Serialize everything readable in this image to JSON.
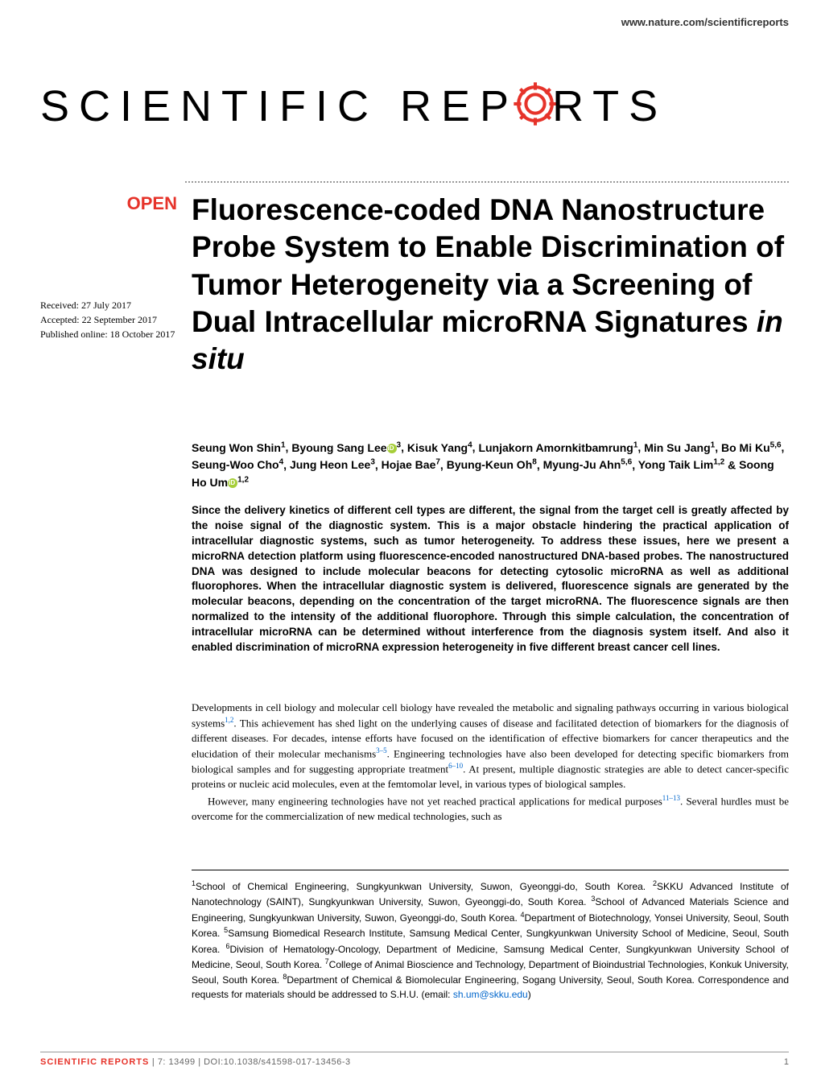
{
  "header": {
    "url": "www.nature.com/scientificreports"
  },
  "journal": {
    "logo_part1": "SCIENTIFIC ",
    "logo_part2": "REP",
    "logo_part3": "RTS",
    "gear_color": "#e6332a"
  },
  "badge": {
    "open": "OPEN"
  },
  "dates": {
    "received": "Received: 27 July 2017",
    "accepted": "Accepted: 22 September 2017",
    "published": "Published online: 18 October 2017"
  },
  "title": {
    "main": "Fluorescence-coded DNA Nanostructure Probe System to Enable Discrimination of Tumor Heterogeneity via a Screening of Dual Intracellular microRNA Signatures ",
    "italic": "in situ"
  },
  "authors": {
    "list": [
      {
        "name": "Seung Won Shin",
        "aff": "1"
      },
      {
        "name": "Byoung Sang Lee",
        "aff": "3",
        "orcid": true
      },
      {
        "name": "Kisuk Yang",
        "aff": "4"
      },
      {
        "name": "Lunjakorn Amornkitbamrung",
        "aff": "1"
      },
      {
        "name": "Min Su Jang",
        "aff": "1"
      },
      {
        "name": "Bo Mi Ku",
        "aff": "5,6"
      },
      {
        "name": "Seung-Woo Cho",
        "aff": "4"
      },
      {
        "name": "Jung Heon Lee",
        "aff": "3"
      },
      {
        "name": "Hojae Bae",
        "aff": "7"
      },
      {
        "name": "Byung-Keun Oh",
        "aff": "8"
      },
      {
        "name": "Myung-Ju Ahn",
        "aff": "5,6"
      },
      {
        "name": "Yong Taik Lim",
        "aff": "1,2"
      },
      {
        "name": "Soong Ho Um",
        "aff": "1,2",
        "orcid": true
      }
    ]
  },
  "abstract": {
    "text": "Since the delivery kinetics of different cell types are different, the signal from the target cell is greatly affected by the noise signal of the diagnostic system. This is a major obstacle hindering the practical application of intracellular diagnostic systems, such as tumor heterogeneity. To address these issues, here we present a microRNA detection platform using fluorescence-encoded nanostructured DNA-based probes. The nanostructured DNA was designed to include molecular beacons for detecting cytosolic microRNA as well as additional fluorophores. When the intracellular diagnostic system is delivered, fluorescence signals are generated by the molecular beacons, depending on the concentration of the target microRNA. The fluorescence signals are then normalized to the intensity of the additional fluorophore. Through this simple calculation, the concentration of intracellular microRNA can be determined without interference from the diagnosis system itself. And also it enabled discrimination of microRNA expression heterogeneity in five different breast cancer cell lines."
  },
  "body": {
    "para1_start": "Developments in cell biology and molecular cell biology have revealed the metabolic and signaling pathways occurring in various biological systems",
    "ref1": "1,2",
    "para1_mid": ". This achievement has shed light on the underlying causes of disease and facilitated detection of biomarkers for the diagnosis of different diseases. For decades, intense efforts have focused on the identification of effective biomarkers for cancer therapeutics and the elucidation of their molecular mechanisms",
    "ref2": "3–5",
    "para1_mid2": ". Engineering technologies have also been developed for detecting specific biomarkers from biological samples and for suggesting appropriate treatment",
    "ref3": "6–10",
    "para1_end": ". At present, multiple diagnostic strategies are able to detect cancer-specific proteins or nucleic acid molecules, even at the femtomolar level, in various types of biological samples.",
    "para2_start": "However, many engineering technologies have not yet reached practical applications for medical purposes",
    "ref4": "11–13",
    "para2_end": ". Several hurdles must be overcome for the commercialization of new medical technologies, such as"
  },
  "affiliations": {
    "text_parts": [
      {
        "sup": "1",
        "text": "School of Chemical Engineering, Sungkyunkwan University, Suwon, Gyeonggi-do, South Korea. "
      },
      {
        "sup": "2",
        "text": "SKKU Advanced Institute of Nanotechnology (SAINT), Sungkyunkwan University, Suwon, Gyeonggi-do, South Korea. "
      },
      {
        "sup": "3",
        "text": "School of Advanced Materials Science and Engineering, Sungkyunkwan University, Suwon, Gyeonggi-do, South Korea. "
      },
      {
        "sup": "4",
        "text": "Department of Biotechnology, Yonsei University, Seoul, South Korea. "
      },
      {
        "sup": "5",
        "text": "Samsung Biomedical Research Institute, Samsung Medical Center, Sungkyunkwan University School of Medicine, Seoul, South Korea. "
      },
      {
        "sup": "6",
        "text": "Division of Hematology-Oncology, Department of Medicine, Samsung Medical Center, Sungkyunkwan University School of Medicine, Seoul, South Korea. "
      },
      {
        "sup": "7",
        "text": "College of Animal Bioscience and Technology, Department of Bioindustrial Technologies, Konkuk University, Seoul, South Korea. "
      },
      {
        "sup": "8",
        "text": "Department of Chemical & Biomolecular Engineering, Sogang University, Seoul, South Korea. "
      }
    ],
    "correspondence": "Correspondence and requests for materials should be addressed to S.H.U. (email: ",
    "email": "sh.um@skku.edu",
    "close": ")"
  },
  "footer": {
    "journal": "SCIENTIFIC REPORTS",
    "citation": " | 7: 13499  | DOI:10.1038/s41598-017-13456-3",
    "page": "1"
  },
  "colors": {
    "accent": "#e6332a",
    "link": "#0066cc",
    "orcid": "#a6ce39"
  }
}
